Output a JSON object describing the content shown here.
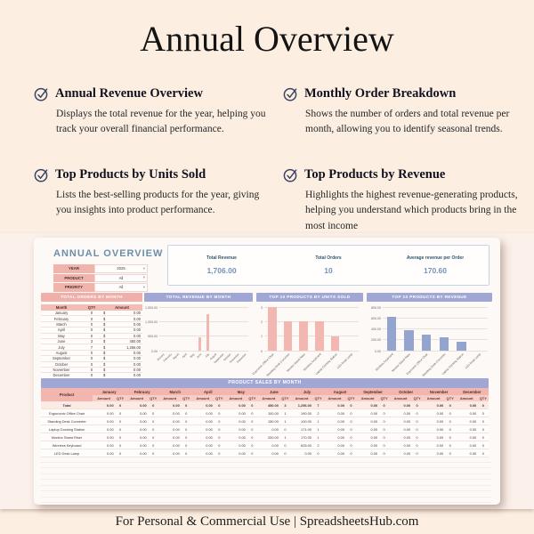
{
  "page": {
    "title": "Annual Overview",
    "footer": "For Personal & Commercial Use  |  SpreadsheetsHub.com"
  },
  "features": [
    {
      "title": "Annual Revenue Overview",
      "description": "Displays the total revenue for the year, helping you track your overall financial performance."
    },
    {
      "title": "Monthly Order Breakdown",
      "description": "Shows the number of orders and total revenue per month, allowing you to identify seasonal trends."
    },
    {
      "title": "Top Products by Units Sold",
      "description": "Lists the best-selling products for the year, giving you insights into product performance."
    },
    {
      "title": "Top Products by Revenue",
      "description": "Highlights the highest revenue-generating products, helping you understand which products bring in the most income"
    }
  ],
  "icons": {
    "feature_check": "check-circle-icon",
    "filter_dropdown": "chevron-down-icon"
  },
  "colors": {
    "background": "#fcefe2",
    "pink_header": "#eeb0a9",
    "purple_header": "#a1a7d4",
    "pink_bar": "#f1b7b0",
    "blue_bar": "#93a4cf",
    "kpi_value_blue": "#7492bd",
    "sheet_title_blue": "#6a8fa8"
  },
  "sheet": {
    "title": "ANNUAL OVERVIEW",
    "filters": [
      {
        "label": "YEAR",
        "value": "2025"
      },
      {
        "label": "PRODUCT",
        "value": "All"
      },
      {
        "label": "PRIORITY",
        "value": "All"
      }
    ],
    "kpis": [
      {
        "label": "Total Revenue",
        "value": "1,706.00"
      },
      {
        "label": "Total Orders",
        "value": "10"
      },
      {
        "label": "Average revenue per Order",
        "value": "170.60"
      }
    ],
    "orders_by_month": {
      "title": "TOTAL ORDERS BY MONTH",
      "columns": [
        "Month",
        "QTY",
        "Amount"
      ],
      "currency": "$",
      "rows": [
        [
          "January",
          "0",
          "0.00"
        ],
        [
          "February",
          "0",
          "0.00"
        ],
        [
          "March",
          "0",
          "0.00"
        ],
        [
          "April",
          "0",
          "0.00"
        ],
        [
          "May",
          "0",
          "0.00"
        ],
        [
          "June",
          "3",
          "450.00"
        ],
        [
          "July",
          "7",
          "1,256.00"
        ],
        [
          "August",
          "0",
          "0.00"
        ],
        [
          "September",
          "0",
          "0.00"
        ],
        [
          "October",
          "0",
          "0.00"
        ],
        [
          "November",
          "0",
          "0.00"
        ],
        [
          "December",
          "0",
          "0.00"
        ]
      ]
    },
    "product_sales": {
      "title": "PRODUCT SALES BY MONTH",
      "product_col": "Product",
      "subcols": [
        "Amount",
        "QTY"
      ],
      "months": [
        "January",
        "February",
        "March",
        "April",
        "May",
        "June",
        "July",
        "August",
        "September",
        "October",
        "November",
        "December"
      ],
      "rows": [
        {
          "product": "Total",
          "amount": [
            "0.00",
            "0.00",
            "0.00",
            "0.00",
            "0.00",
            "450.00",
            "1,256.00",
            "0.00",
            "0.00",
            "0.00",
            "0.00",
            "0.00"
          ],
          "qty": [
            "0",
            "0",
            "0",
            "0",
            "0",
            "3",
            "7",
            "0",
            "0",
            "0",
            "0",
            "0"
          ]
        },
        {
          "product": "Ergonomic Office Chair",
          "amount": [
            "0.00",
            "0.00",
            "0.00",
            "0.00",
            "0.00",
            "100.00",
            "190.00",
            "0.00",
            "0.00",
            "0.00",
            "0.00",
            "0.00"
          ],
          "qty": [
            "0",
            "0",
            "0",
            "0",
            "0",
            "1",
            "2",
            "0",
            "0",
            "0",
            "0",
            "0"
          ]
        },
        {
          "product": "Standing Desk Converter",
          "amount": [
            "0.00",
            "0.00",
            "0.00",
            "0.00",
            "0.00",
            "150.00",
            "100.00",
            "0.00",
            "0.00",
            "0.00",
            "0.00",
            "0.00"
          ],
          "qty": [
            "0",
            "0",
            "0",
            "0",
            "0",
            "1",
            "1",
            "0",
            "0",
            "0",
            "0",
            "0"
          ]
        },
        {
          "product": "Laptop Docking Station",
          "amount": [
            "0.00",
            "0.00",
            "0.00",
            "0.00",
            "0.00",
            "0.00",
            "171.00",
            "0.00",
            "0.00",
            "0.00",
            "0.00",
            "0.00"
          ],
          "qty": [
            "0",
            "0",
            "0",
            "0",
            "0",
            "0",
            "1",
            "0",
            "0",
            "0",
            "0",
            "0"
          ]
        },
        {
          "product": "Monitor Stand Riser",
          "amount": [
            "0.00",
            "0.00",
            "0.00",
            "0.00",
            "0.00",
            "200.00",
            "170.00",
            "0.00",
            "0.00",
            "0.00",
            "0.00",
            "0.00"
          ],
          "qty": [
            "0",
            "0",
            "0",
            "0",
            "0",
            "1",
            "1",
            "0",
            "0",
            "0",
            "0",
            "0"
          ]
        },
        {
          "product": "Wireless Keyboard",
          "amount": [
            "0.00",
            "0.00",
            "0.00",
            "0.00",
            "0.00",
            "0.00",
            "625.00",
            "0.00",
            "0.00",
            "0.00",
            "0.00",
            "0.00"
          ],
          "qty": [
            "0",
            "0",
            "0",
            "0",
            "0",
            "0",
            "2",
            "0",
            "0",
            "0",
            "0",
            "0"
          ]
        },
        {
          "product": "LED Desk Lamp",
          "amount": [
            "0.00",
            "0.00",
            "0.00",
            "0.00",
            "0.00",
            "0.00",
            "0.00",
            "0.00",
            "0.00",
            "0.00",
            "0.00",
            "0.00"
          ],
          "qty": [
            "0",
            "0",
            "0",
            "0",
            "0",
            "0",
            "0",
            "0",
            "0",
            "0",
            "0",
            "0"
          ]
        }
      ]
    }
  },
  "chart_data": [
    {
      "type": "bar",
      "title": "TOTAL REVENUE BY MONTH",
      "categories": [
        "January",
        "February",
        "March",
        "April",
        "May",
        "June",
        "July",
        "August",
        "September",
        "October",
        "November",
        "December"
      ],
      "values": [
        0,
        0,
        0,
        0,
        0,
        450,
        1256,
        0,
        0,
        0,
        0,
        0
      ],
      "xlabel": "",
      "ylabel": "",
      "ylim": [
        0,
        1500
      ],
      "yticks": [
        {
          "v": 0,
          "label": "0.00"
        },
        {
          "v": 500,
          "label": "500.00"
        },
        {
          "v": 1000,
          "label": "1,000.00"
        },
        {
          "v": 1500,
          "label": "1,500.00"
        }
      ],
      "grid": true,
      "legend": "none",
      "bar_color": "#f1b7b0"
    },
    {
      "type": "bar",
      "title": "TOP 10 PRODUCTS BY UNITS SOLD",
      "categories": [
        "Ergonomic Office Chair",
        "Standing Desk Converter",
        "Monitor Stand Riser",
        "Wireless Keyboard",
        "Laptop Docking Station",
        "LED Desk Lamp"
      ],
      "values": [
        3,
        2,
        2,
        2,
        1,
        0
      ],
      "xlabel": "",
      "ylabel": "",
      "ylim": [
        0,
        3
      ],
      "yticks": [
        {
          "v": 0,
          "label": "0"
        },
        {
          "v": 1,
          "label": "1"
        },
        {
          "v": 2,
          "label": "2"
        },
        {
          "v": 3,
          "label": "3"
        }
      ],
      "grid": true,
      "legend": "none",
      "bar_color": "#f1b7b0"
    },
    {
      "type": "bar",
      "title": "TOP 10 PRODUCTS BY REVENUE",
      "categories": [
        "Wireless Keyboard",
        "Monitor Stand Riser",
        "Ergonomic Office Chair",
        "Standing Desk Converter",
        "Laptop Docking Station",
        "LED Desk Lamp"
      ],
      "values": [
        625,
        370,
        290,
        250,
        171,
        0
      ],
      "xlabel": "",
      "ylabel": "",
      "ylim": [
        0,
        800
      ],
      "yticks": [
        {
          "v": 0,
          "label": "0.00"
        },
        {
          "v": 200,
          "label": "200.00"
        },
        {
          "v": 400,
          "label": "400.00"
        },
        {
          "v": 600,
          "label": "600.00"
        },
        {
          "v": 800,
          "label": "800.00"
        }
      ],
      "grid": true,
      "legend": "none",
      "bar_color": "#93a4cf"
    }
  ]
}
